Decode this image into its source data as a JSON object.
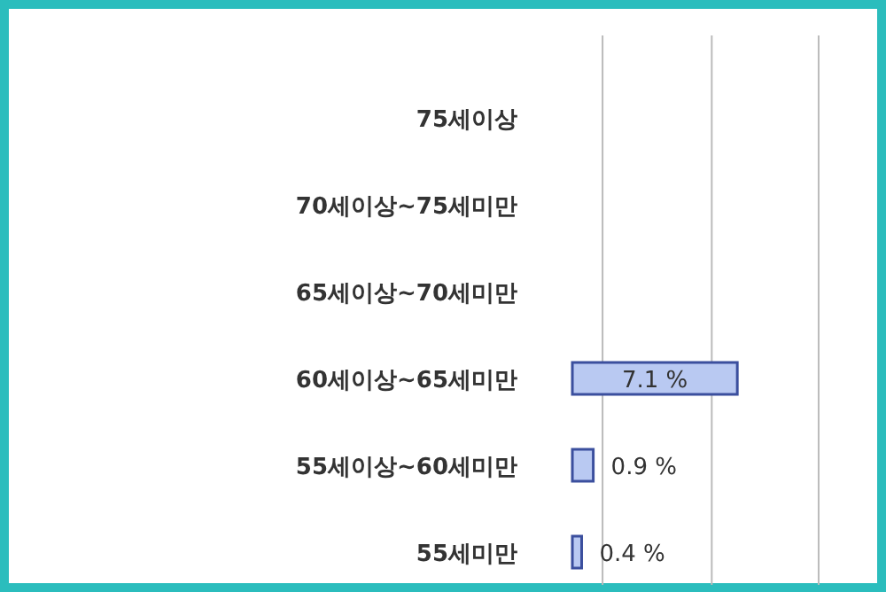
{
  "chart_data": {
    "type": "bar",
    "orientation": "horizontal",
    "categories": [
      "75세이상",
      "70세이상~75세미만",
      "65세이상~70세미만",
      "60세이상~65세미만",
      "55세이상~60세미만",
      "55세미만"
    ],
    "values": [
      null,
      null,
      null,
      7.1,
      0.9,
      0.4
    ],
    "value_labels": [
      null,
      null,
      null,
      "7.1 %",
      "0.9 %",
      "0.4 %"
    ],
    "color": "#b9c9f2",
    "xlim": [
      0,
      13.5
    ],
    "xticks": [
      {
        "value": 1.3,
        "label": null
      },
      {
        "value": 6.0,
        "label": null
      },
      {
        "value": 10.6,
        "label": null
      }
    ],
    "grid": "x"
  }
}
